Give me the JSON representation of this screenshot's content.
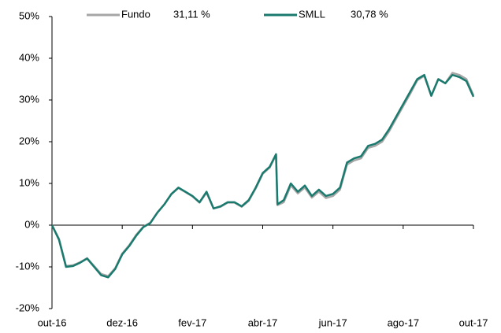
{
  "chart_data": {
    "type": "line",
    "x": [
      0,
      0.2,
      0.4,
      0.6,
      0.8,
      1,
      1.2,
      1.4,
      1.6,
      1.8,
      2,
      2.2,
      2.4,
      2.6,
      2.8,
      3,
      3.2,
      3.4,
      3.6,
      3.8,
      4,
      4.2,
      4.4,
      4.6,
      4.8,
      5,
      5.2,
      5.4,
      5.6,
      5.8,
      6,
      6.2,
      6.38,
      6.42,
      6.6,
      6.8,
      7,
      7.2,
      7.4,
      7.6,
      7.8,
      8,
      8.2,
      8.4,
      8.6,
      8.8,
      9,
      9.2,
      9.4,
      9.6,
      9.8,
      10,
      10.2,
      10.4,
      10.6,
      10.8,
      11,
      11.2,
      11.4,
      11.6,
      11.8,
      12
    ],
    "series": [
      {
        "name": "Fundo",
        "legend_value": "31,11 %",
        "color": "#a6a6a6",
        "values": [
          0,
          -3.3,
          -9.8,
          -9.6,
          -8.9,
          -7.9,
          -9.8,
          -11.7,
          -12.2,
          -10.3,
          -6.8,
          -4.8,
          -2.3,
          -0.4,
          0.6,
          3,
          5,
          7.4,
          8.9,
          7.9,
          6.9,
          5.4,
          7.8,
          4,
          4.4,
          5.4,
          5.4,
          4.4,
          5.8,
          8.8,
          12.3,
          13.8,
          16.8,
          4.8,
          5.5,
          9.5,
          7.6,
          9,
          6.6,
          8,
          6.5,
          7,
          8.5,
          14.5,
          15.5,
          16,
          18.5,
          19,
          20,
          22.5,
          25.5,
          28.5,
          31.5,
          34.7,
          35.8,
          31,
          35,
          34,
          36.5,
          36,
          35,
          31.11
        ]
      },
      {
        "name": "SMLL",
        "legend_value": "30,78 %",
        "color": "#1a7a6e",
        "values": [
          0,
          -3.5,
          -10,
          -9.8,
          -9,
          -8,
          -10,
          -12,
          -12.5,
          -10.5,
          -7,
          -5,
          -2.5,
          -0.5,
          0.5,
          3,
          5,
          7.5,
          9,
          8,
          7,
          5.5,
          8,
          4,
          4.5,
          5.5,
          5.5,
          4.5,
          6,
          9,
          12.5,
          14,
          17,
          5,
          6,
          10,
          8,
          9.5,
          7,
          8.5,
          7,
          7.5,
          9,
          15,
          16,
          16.5,
          19,
          19.5,
          20.5,
          23,
          26,
          29,
          32,
          35,
          36,
          31,
          35,
          34,
          36,
          35.5,
          34.5,
          30.78
        ]
      }
    ],
    "xlim": [
      0,
      12
    ],
    "xticks": [
      {
        "value": 0,
        "label": "out-16"
      },
      {
        "value": 2,
        "label": "dez-16"
      },
      {
        "value": 4,
        "label": "fev-17"
      },
      {
        "value": 6,
        "label": "abr-17"
      },
      {
        "value": 8,
        "label": "jun-17"
      },
      {
        "value": 10,
        "label": "ago-17"
      },
      {
        "value": 12,
        "label": "out-17"
      }
    ],
    "ylim": [
      -20,
      50
    ],
    "yticks": [
      {
        "value": -20,
        "label": "-20%"
      },
      {
        "value": -10,
        "label": "-10%"
      },
      {
        "value": 0,
        "label": "0%"
      },
      {
        "value": 10,
        "label": "10%"
      },
      {
        "value": 20,
        "label": "20%"
      },
      {
        "value": 30,
        "label": "30%"
      },
      {
        "value": 40,
        "label": "40%"
      },
      {
        "value": 50,
        "label": "50%"
      }
    ],
    "legend": "top"
  }
}
